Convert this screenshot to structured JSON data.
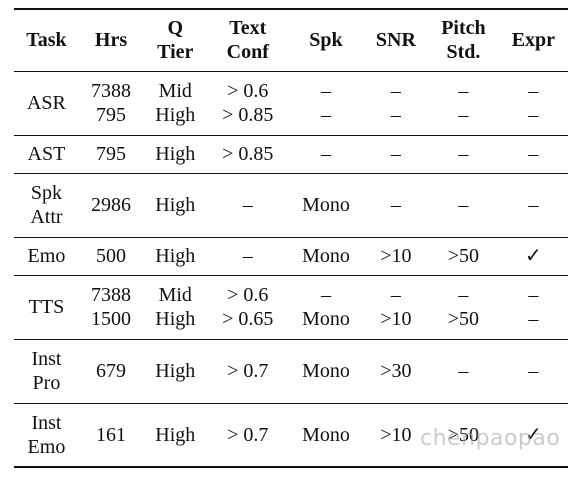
{
  "table": {
    "header": [
      [
        "Task"
      ],
      [
        "Hrs"
      ],
      [
        "Q",
        "Tier"
      ],
      [
        "Text",
        "Conf"
      ],
      [
        "Spk"
      ],
      [
        "SNR"
      ],
      [
        "Pitch",
        "Std."
      ],
      [
        "Expr"
      ]
    ],
    "rows": [
      [
        [
          "ASR"
        ],
        [
          "7388",
          "795"
        ],
        [
          "Mid",
          "High"
        ],
        [
          "> 0.6",
          "> 0.85"
        ],
        [
          "–",
          "–"
        ],
        [
          "–",
          "–"
        ],
        [
          "–",
          "–"
        ],
        [
          "–",
          "–"
        ]
      ],
      [
        [
          "AST"
        ],
        [
          "795"
        ],
        [
          "High"
        ],
        [
          "> 0.85"
        ],
        [
          "–"
        ],
        [
          "–"
        ],
        [
          "–"
        ],
        [
          "–"
        ]
      ],
      [
        [
          "Spk",
          "Attr"
        ],
        [
          "2986"
        ],
        [
          "High"
        ],
        [
          "–"
        ],
        [
          "Mono"
        ],
        [
          "–"
        ],
        [
          "–"
        ],
        [
          "–"
        ]
      ],
      [
        [
          "Emo"
        ],
        [
          "500"
        ],
        [
          "High"
        ],
        [
          "–"
        ],
        [
          "Mono"
        ],
        [
          ">10"
        ],
        [
          ">50"
        ],
        [
          "✓"
        ]
      ],
      [
        [
          "TTS"
        ],
        [
          "7388",
          "1500"
        ],
        [
          "Mid",
          "High"
        ],
        [
          "> 0.6",
          "> 0.65"
        ],
        [
          "–",
          "Mono"
        ],
        [
          "–",
          ">10"
        ],
        [
          "–",
          ">50"
        ],
        [
          "–",
          "–"
        ]
      ],
      [
        [
          "Inst",
          "Pro"
        ],
        [
          "679"
        ],
        [
          "High"
        ],
        [
          "> 0.7"
        ],
        [
          "Mono"
        ],
        [
          ">30"
        ],
        [
          "–"
        ],
        [
          "–"
        ]
      ],
      [
        [
          "Inst",
          "Emo"
        ],
        [
          "161"
        ],
        [
          "High"
        ],
        [
          "> 0.7"
        ],
        [
          "Mono"
        ],
        [
          ">10"
        ],
        [
          ">50"
        ],
        [
          "✓"
        ]
      ]
    ]
  },
  "watermark": "chenpaopao"
}
